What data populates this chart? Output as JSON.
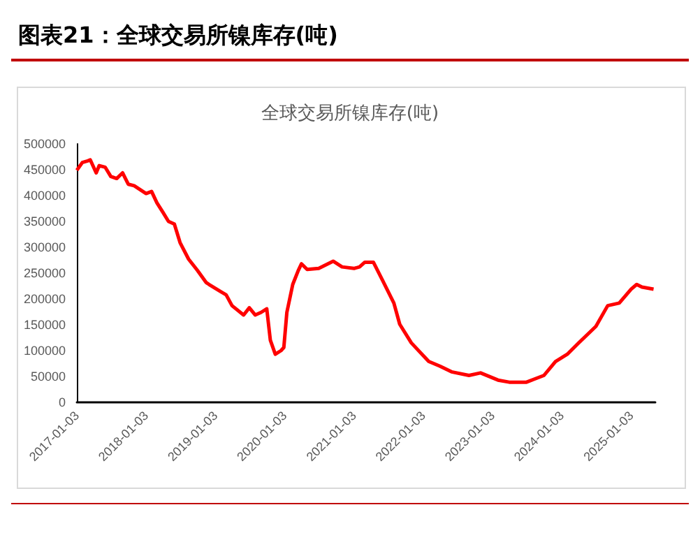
{
  "chart_data": {
    "type": "line",
    "title": "图表21：全球交易所镍库存(吨)",
    "subtitle": "全球交易所镍库存(吨)",
    "x": [
      "2017-01-03",
      "2017-02-01",
      "2017-03-01",
      "2017-03-15",
      "2017-04-15",
      "2017-05-01",
      "2017-06-01",
      "2017-07-01",
      "2017-08-01",
      "2017-09-01",
      "2017-10-01",
      "2017-11-01",
      "2018-01-03",
      "2018-02-01",
      "2018-03-01",
      "2018-04-01",
      "2018-05-01",
      "2018-06-01",
      "2018-07-01",
      "2018-08-15",
      "2018-10-01",
      "2018-11-15",
      "2018-12-01",
      "2019-02-01",
      "2019-03-01",
      "2019-04-01",
      "2019-06-01",
      "2019-07-01",
      "2019-08-01",
      "2019-09-01",
      "2019-10-01",
      "2019-10-20",
      "2019-11-15",
      "2019-12-15",
      "2019-12-30",
      "2020-01-15",
      "2020-02-15",
      "2020-03-15",
      "2020-04-01",
      "2020-05-01",
      "2020-07-01",
      "2020-09-15",
      "2020-11-01",
      "2021-01-03",
      "2021-02-01",
      "2021-03-01",
      "2021-04-15",
      "2021-06-01",
      "2021-08-01",
      "2021-09-01",
      "2021-11-01",
      "2022-02-01",
      "2022-04-01",
      "2022-06-01",
      "2022-09-01",
      "2022-11-01",
      "2023-02-01",
      "2023-04-01",
      "2023-07-01",
      "2023-10-01",
      "2023-12-01",
      "2024-02-01",
      "2024-04-01",
      "2024-07-01",
      "2024-09-01",
      "2024-11-01",
      "2025-01-03",
      "2025-02-01",
      "2025-03-01",
      "2025-05-01"
    ],
    "series": [
      {
        "color": "#ff0000",
        "values": [
          449000,
          464000,
          467000,
          469000,
          444000,
          458000,
          455000,
          437000,
          433000,
          444000,
          422000,
          419000,
          404000,
          408000,
          386000,
          368000,
          350000,
          345000,
          309000,
          277000,
          255000,
          232000,
          228000,
          214000,
          208000,
          187000,
          169000,
          183000,
          169000,
          174000,
          181000,
          120000,
          93000,
          100000,
          106000,
          174000,
          228000,
          255000,
          268000,
          257000,
          259000,
          273000,
          262000,
          259000,
          262000,
          271000,
          271000,
          237000,
          192000,
          151000,
          115000,
          79000,
          70000,
          59000,
          52000,
          57000,
          43000,
          39000,
          39000,
          52000,
          79000,
          93000,
          115000,
          147000,
          187000,
          192000,
          219000,
          228000,
          223000,
          219000
        ]
      }
    ],
    "xlim": [
      "2017-01-03",
      "2025-05-10"
    ],
    "xticks": [
      "2017-01-03",
      "2018-01-03",
      "2019-01-03",
      "2020-01-03",
      "2021-01-03",
      "2022-01-03",
      "2023-01-03",
      "2024-01-03",
      "2025-01-03"
    ],
    "ylim": [
      0,
      500000
    ],
    "yticks": [
      0,
      50000,
      100000,
      150000,
      200000,
      250000,
      300000,
      350000,
      400000,
      450000,
      500000
    ],
    "grid": false,
    "marker": "none",
    "line_style": "solid"
  }
}
